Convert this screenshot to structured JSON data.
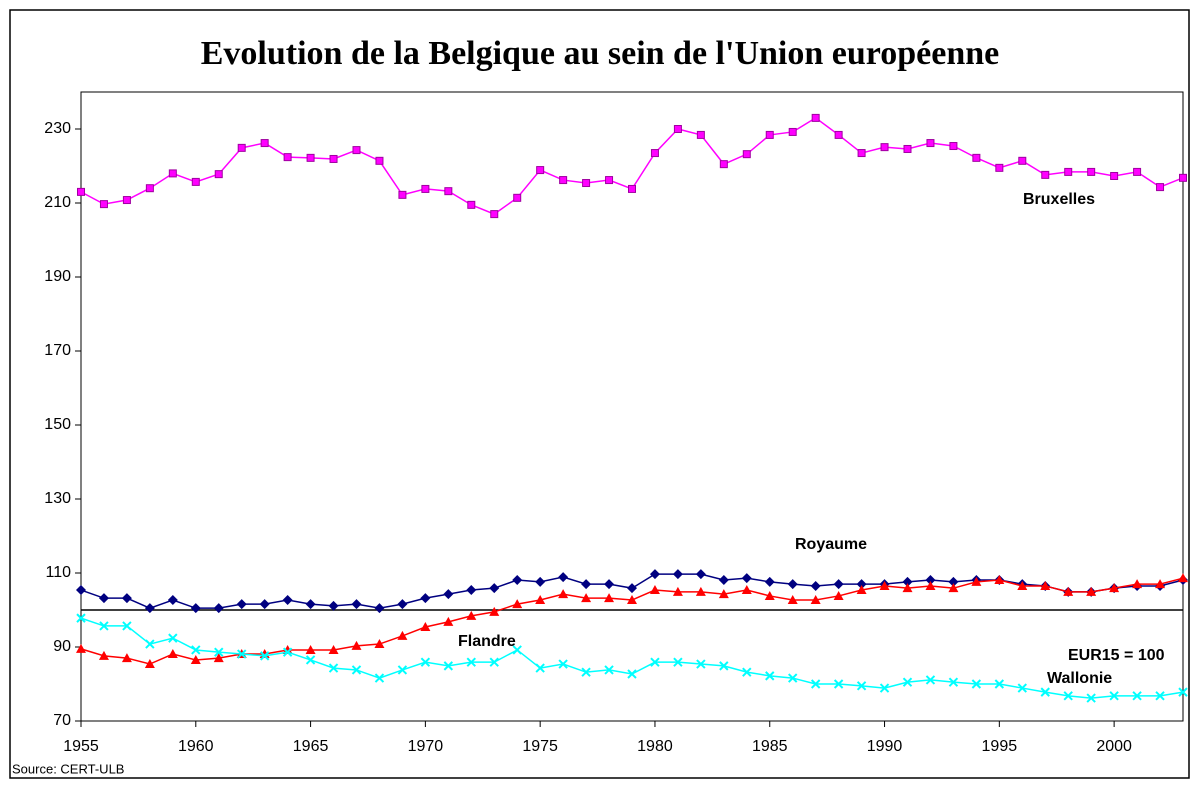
{
  "chart_data": {
    "type": "line",
    "title": "Evolution de la Belgique au sein de l'Union européenne",
    "source": "Source: CERT-ULB",
    "x": [
      1955,
      1956,
      1957,
      1958,
      1959,
      1960,
      1961,
      1962,
      1963,
      1964,
      1965,
      1966,
      1967,
      1968,
      1969,
      1970,
      1971,
      1972,
      1973,
      1974,
      1975,
      1976,
      1977,
      1978,
      1979,
      1980,
      1981,
      1982,
      1983,
      1984,
      1985,
      1986,
      1987,
      1988,
      1989,
      1990,
      1991,
      1992,
      1993,
      1994,
      1995,
      1996,
      1997,
      1998,
      1999,
      2000,
      2001,
      2002,
      2003
    ],
    "series": [
      {
        "name": "Bruxelles",
        "color": "#ff00ff",
        "marker": "square",
        "values": [
          213,
          209.7,
          210.8,
          214,
          218,
          215.7,
          217.8,
          224.9,
          226.2,
          222.4,
          222.2,
          221.9,
          224.3,
          221.4,
          212.2,
          213.8,
          213.2,
          209.5,
          207,
          211.4,
          218.9,
          216.2,
          215.4,
          216.2,
          213.8,
          223.5,
          230,
          228.4,
          220.5,
          223.2,
          228.4,
          229.2,
          233,
          228.4,
          223.5,
          225.1,
          224.6,
          226.2,
          225.4,
          222.2,
          219.5,
          221.4,
          217.6,
          218.4,
          218.4,
          217.3,
          218.4,
          214.3,
          216.8
        ]
      },
      {
        "name": "Royaume",
        "color": "#000080",
        "marker": "diamond",
        "values": [
          105.4,
          103.2,
          103.2,
          100.5,
          102.7,
          100.5,
          100.5,
          101.6,
          101.6,
          102.7,
          101.6,
          101.1,
          101.6,
          100.5,
          101.6,
          103.2,
          104.3,
          105.4,
          105.9,
          108.1,
          107.6,
          108.9,
          107,
          107,
          105.9,
          109.7,
          109.7,
          109.7,
          108.1,
          108.6,
          107.6,
          107,
          106.5,
          107,
          107,
          107,
          107.6,
          108.1,
          107.6,
          108.1,
          108.1,
          107,
          106.5,
          104.9,
          104.9,
          105.9,
          106.5,
          106.5,
          108.1
        ]
      },
      {
        "name": "Flandre",
        "color": "#ff0000",
        "marker": "triangle",
        "values": [
          89.5,
          87.6,
          87,
          85.4,
          88.1,
          86.5,
          87,
          88.1,
          88.1,
          89.2,
          89.2,
          89.2,
          90.3,
          90.8,
          93,
          95.4,
          96.8,
          98.4,
          99.5,
          101.6,
          102.7,
          104.3,
          103.2,
          103.2,
          102.7,
          105.4,
          104.9,
          104.9,
          104.3,
          105.4,
          103.8,
          102.7,
          102.7,
          103.8,
          105.4,
          106.5,
          105.9,
          106.5,
          105.9,
          107.6,
          108.1,
          106.5,
          106.5,
          104.9,
          104.9,
          105.9,
          107,
          107,
          108.6
        ]
      },
      {
        "name": "Wallonie",
        "color": "#00ffff",
        "marker": "x",
        "values": [
          97.8,
          95.7,
          95.7,
          90.8,
          92.4,
          89.2,
          88.6,
          88.1,
          87.6,
          88.6,
          86.5,
          84.3,
          83.8,
          81.6,
          83.8,
          85.9,
          84.9,
          85.9,
          85.9,
          89.2,
          84.3,
          85.4,
          83.2,
          83.8,
          82.7,
          85.9,
          85.9,
          85.4,
          84.9,
          83.2,
          82.2,
          81.6,
          80,
          80,
          79.5,
          78.9,
          80.5,
          81.1,
          80.5,
          80,
          80,
          78.9,
          77.8,
          76.8,
          76.2,
          76.8,
          76.8,
          76.8,
          77.8
        ]
      }
    ],
    "reference_line": {
      "value": 100,
      "label": "EUR15 = 100"
    },
    "xlim": [
      1955,
      2003
    ],
    "xticks": [
      1955,
      1960,
      1965,
      1970,
      1975,
      1980,
      1985,
      1990,
      1995,
      2000
    ],
    "ylim": [
      70,
      240
    ],
    "yticks": [
      70,
      90,
      110,
      130,
      150,
      170,
      190,
      210,
      230
    ],
    "grid": false
  }
}
